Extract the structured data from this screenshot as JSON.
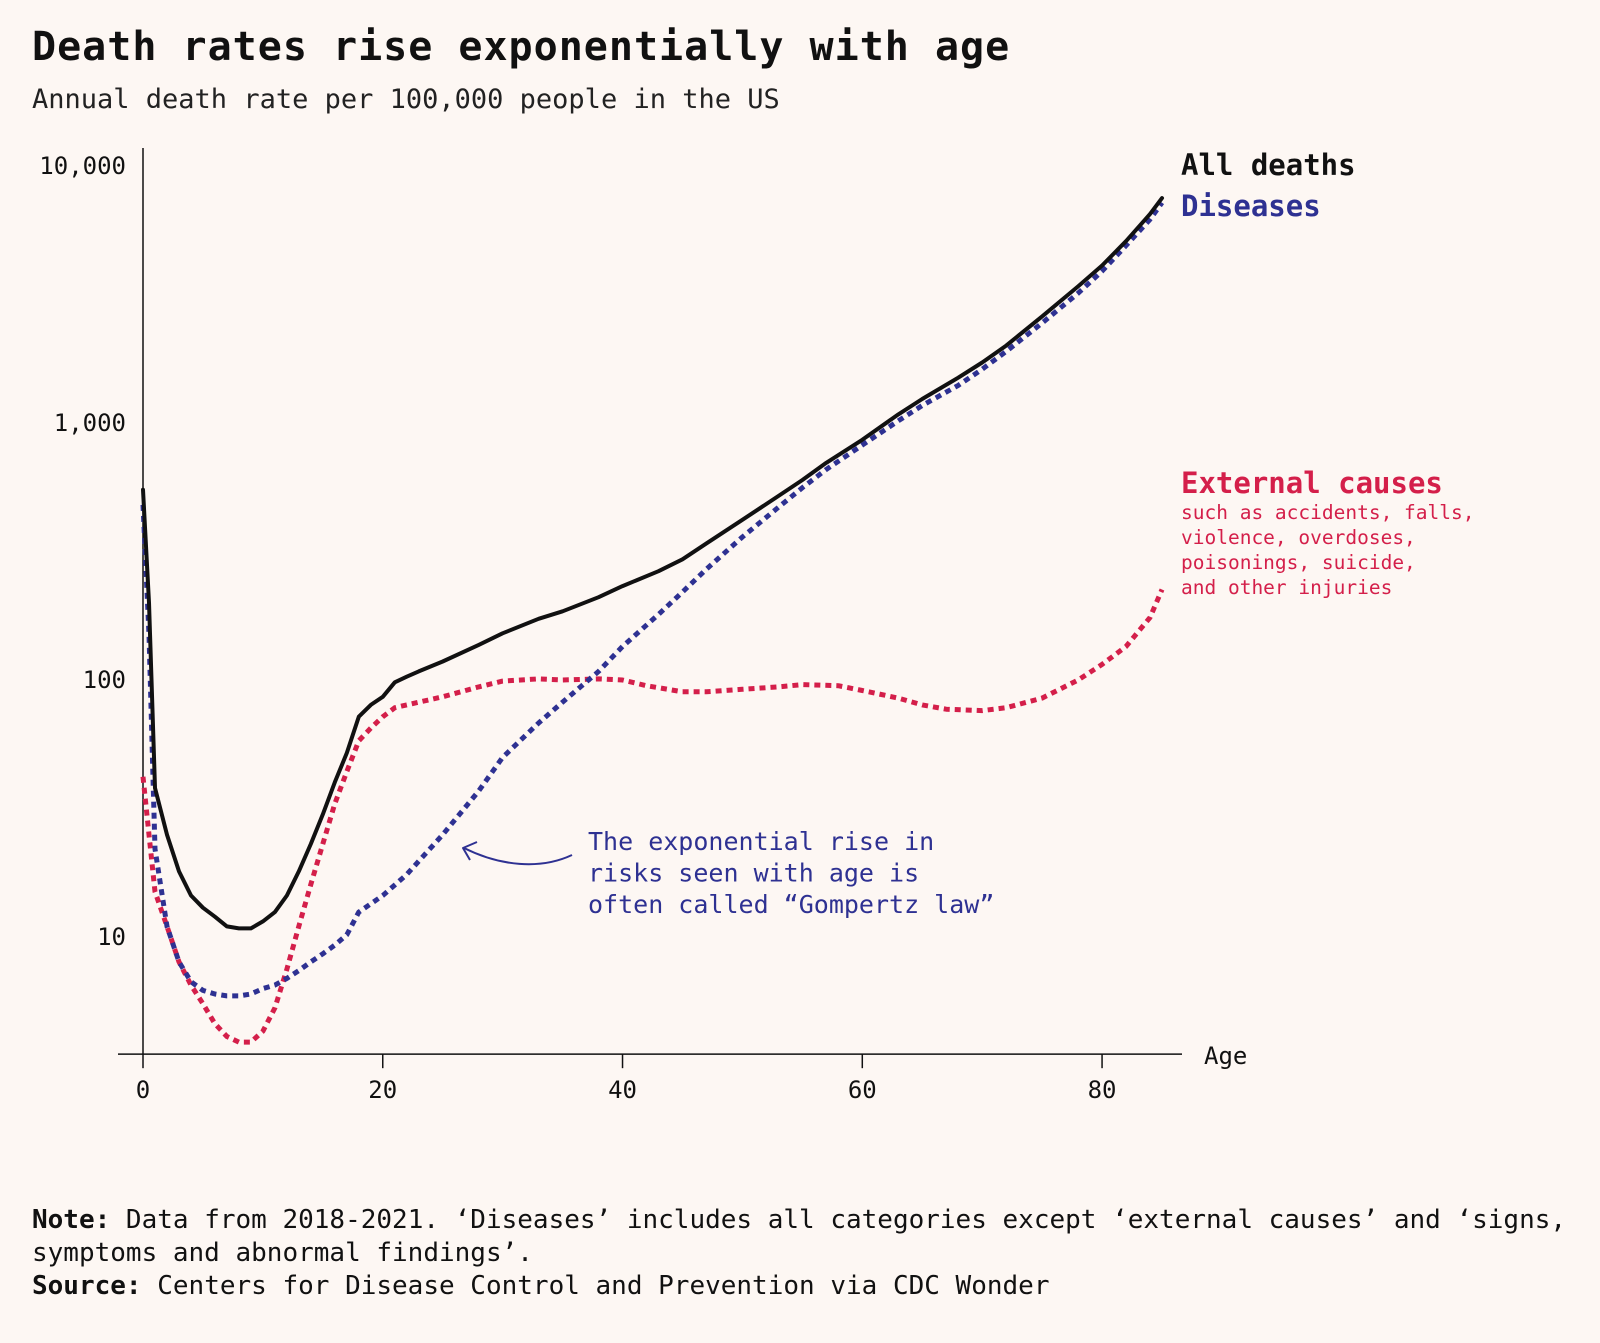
{
  "header": {
    "title": "Death rates rise exponentially with age",
    "subtitle": "Annual death rate per 100,000 people in the US"
  },
  "chart_data": {
    "type": "line",
    "title": "Death rates rise exponentially with age",
    "subtitle": "Annual death rate per 100,000 people in the US",
    "xlabel": "Age",
    "ylabel": "",
    "x_ticks": [
      0,
      20,
      40,
      60,
      80
    ],
    "y_ticks": [
      10,
      100,
      1000,
      10000
    ],
    "y_tick_labels": [
      "10",
      "100",
      "1,000",
      "10,000"
    ],
    "xlim": [
      0,
      85
    ],
    "ylim": [
      3.5,
      13000
    ],
    "y_scale": "log",
    "grid": false,
    "legend": "direct labels at right end of lines",
    "series": [
      {
        "name": "All deaths",
        "color": "#111111",
        "style": "solid",
        "points": [
          [
            0,
            550
          ],
          [
            0.5,
            200
          ],
          [
            1,
            38
          ],
          [
            2,
            25
          ],
          [
            3,
            18
          ],
          [
            4,
            14.5
          ],
          [
            5,
            13
          ],
          [
            6,
            12
          ],
          [
            7,
            11
          ],
          [
            8,
            10.8
          ],
          [
            9,
            10.8
          ],
          [
            10,
            11.5
          ],
          [
            11,
            12.5
          ],
          [
            12,
            14.5
          ],
          [
            13,
            18
          ],
          [
            14,
            23
          ],
          [
            15,
            30
          ],
          [
            16,
            40
          ],
          [
            17,
            52
          ],
          [
            18,
            72
          ],
          [
            19,
            80
          ],
          [
            20,
            86
          ],
          [
            21,
            98
          ],
          [
            22,
            103
          ],
          [
            23,
            108
          ],
          [
            25,
            118
          ],
          [
            28,
            137
          ],
          [
            30,
            152
          ],
          [
            33,
            173
          ],
          [
            35,
            185
          ],
          [
            38,
            210
          ],
          [
            40,
            232
          ],
          [
            43,
            265
          ],
          [
            45,
            295
          ],
          [
            47,
            340
          ],
          [
            50,
            420
          ],
          [
            53,
            520
          ],
          [
            55,
            600
          ],
          [
            57,
            700
          ],
          [
            60,
            860
          ],
          [
            63,
            1080
          ],
          [
            65,
            1240
          ],
          [
            68,
            1500
          ],
          [
            70,
            1720
          ],
          [
            72,
            2000
          ],
          [
            75,
            2600
          ],
          [
            78,
            3400
          ],
          [
            80,
            4100
          ],
          [
            82,
            5100
          ],
          [
            84,
            6500
          ],
          [
            85,
            7500
          ]
        ]
      },
      {
        "name": "Diseases",
        "color": "#2e3192",
        "style": "dotted",
        "points": [
          [
            0,
            480
          ],
          [
            0.5,
            150
          ],
          [
            1,
            22
          ],
          [
            2,
            11
          ],
          [
            3,
            8
          ],
          [
            4,
            6.7
          ],
          [
            5,
            6.2
          ],
          [
            6,
            6.0
          ],
          [
            7,
            5.9
          ],
          [
            8,
            5.9
          ],
          [
            9,
            6.0
          ],
          [
            10,
            6.3
          ],
          [
            11,
            6.5
          ],
          [
            12,
            6.9
          ],
          [
            13,
            7.4
          ],
          [
            14,
            8.0
          ],
          [
            15,
            8.6
          ],
          [
            16,
            9.3
          ],
          [
            17,
            10.2
          ],
          [
            18,
            12.5
          ],
          [
            20,
            14.5
          ],
          [
            22,
            17.5
          ],
          [
            25,
            25
          ],
          [
            28,
            37
          ],
          [
            30,
            50
          ],
          [
            33,
            68
          ],
          [
            35,
            82
          ],
          [
            38,
            108
          ],
          [
            40,
            135
          ],
          [
            43,
            180
          ],
          [
            45,
            220
          ],
          [
            47,
            270
          ],
          [
            50,
            360
          ],
          [
            53,
            470
          ],
          [
            55,
            560
          ],
          [
            57,
            660
          ],
          [
            60,
            820
          ],
          [
            63,
            1020
          ],
          [
            65,
            1170
          ],
          [
            68,
            1400
          ],
          [
            70,
            1620
          ],
          [
            72,
            1900
          ],
          [
            75,
            2450
          ],
          [
            78,
            3200
          ],
          [
            80,
            3900
          ],
          [
            82,
            4900
          ],
          [
            84,
            6200
          ],
          [
            85,
            7200
          ]
        ]
      },
      {
        "name": "External causes",
        "color": "#d41f4a",
        "style": "dotted",
        "points": [
          [
            0,
            42
          ],
          [
            0.5,
            25
          ],
          [
            1,
            15
          ],
          [
            2,
            11
          ],
          [
            3,
            8
          ],
          [
            4,
            6.5
          ],
          [
            5,
            5.5
          ],
          [
            6,
            4.6
          ],
          [
            7,
            4.1
          ],
          [
            8,
            3.9
          ],
          [
            9,
            3.9
          ],
          [
            10,
            4.3
          ],
          [
            11,
            5.3
          ],
          [
            12,
            7.5
          ],
          [
            13,
            11
          ],
          [
            14,
            16
          ],
          [
            15,
            23
          ],
          [
            16,
            33
          ],
          [
            17,
            44
          ],
          [
            18,
            58
          ],
          [
            19,
            65
          ],
          [
            20,
            72
          ],
          [
            21,
            78
          ],
          [
            22,
            80
          ],
          [
            25,
            86
          ],
          [
            28,
            94
          ],
          [
            30,
            99
          ],
          [
            33,
            101
          ],
          [
            35,
            100
          ],
          [
            38,
            101
          ],
          [
            40,
            100
          ],
          [
            42,
            95
          ],
          [
            45,
            90
          ],
          [
            47,
            90
          ],
          [
            50,
            92
          ],
          [
            53,
            94
          ],
          [
            55,
            96
          ],
          [
            58,
            95
          ],
          [
            60,
            91
          ],
          [
            63,
            85
          ],
          [
            65,
            80
          ],
          [
            67,
            77
          ],
          [
            70,
            76
          ],
          [
            72,
            78
          ],
          [
            75,
            85
          ],
          [
            78,
            100
          ],
          [
            80,
            115
          ],
          [
            82,
            135
          ],
          [
            84,
            175
          ],
          [
            85,
            225
          ]
        ]
      }
    ],
    "annotations": {
      "all_deaths_label": "All deaths",
      "diseases_label": "Diseases",
      "external_label": "External causes",
      "external_desc": [
        "such as accidents, falls,",
        "violence, overdoses,",
        "poisonings, suicide,",
        "and other injuries"
      ],
      "gompertz": [
        "The exponential rise in",
        "risks seen with age is",
        "often called “Gompertz law”"
      ]
    }
  },
  "footer": {
    "note_label": "Note:",
    "note_text": " Data from 2018-2021. ‘Diseases’ includes all categories except ‘external causes’ and ‘signs, symptoms and abnormal findings’.",
    "source_label": "Source:",
    "source_text": " Centers for Disease Control and Prevention via CDC Wonder"
  },
  "colors": {
    "background": "#fdf7f3",
    "all_deaths": "#111111",
    "diseases": "#2e3192",
    "external": "#d41f4a"
  }
}
